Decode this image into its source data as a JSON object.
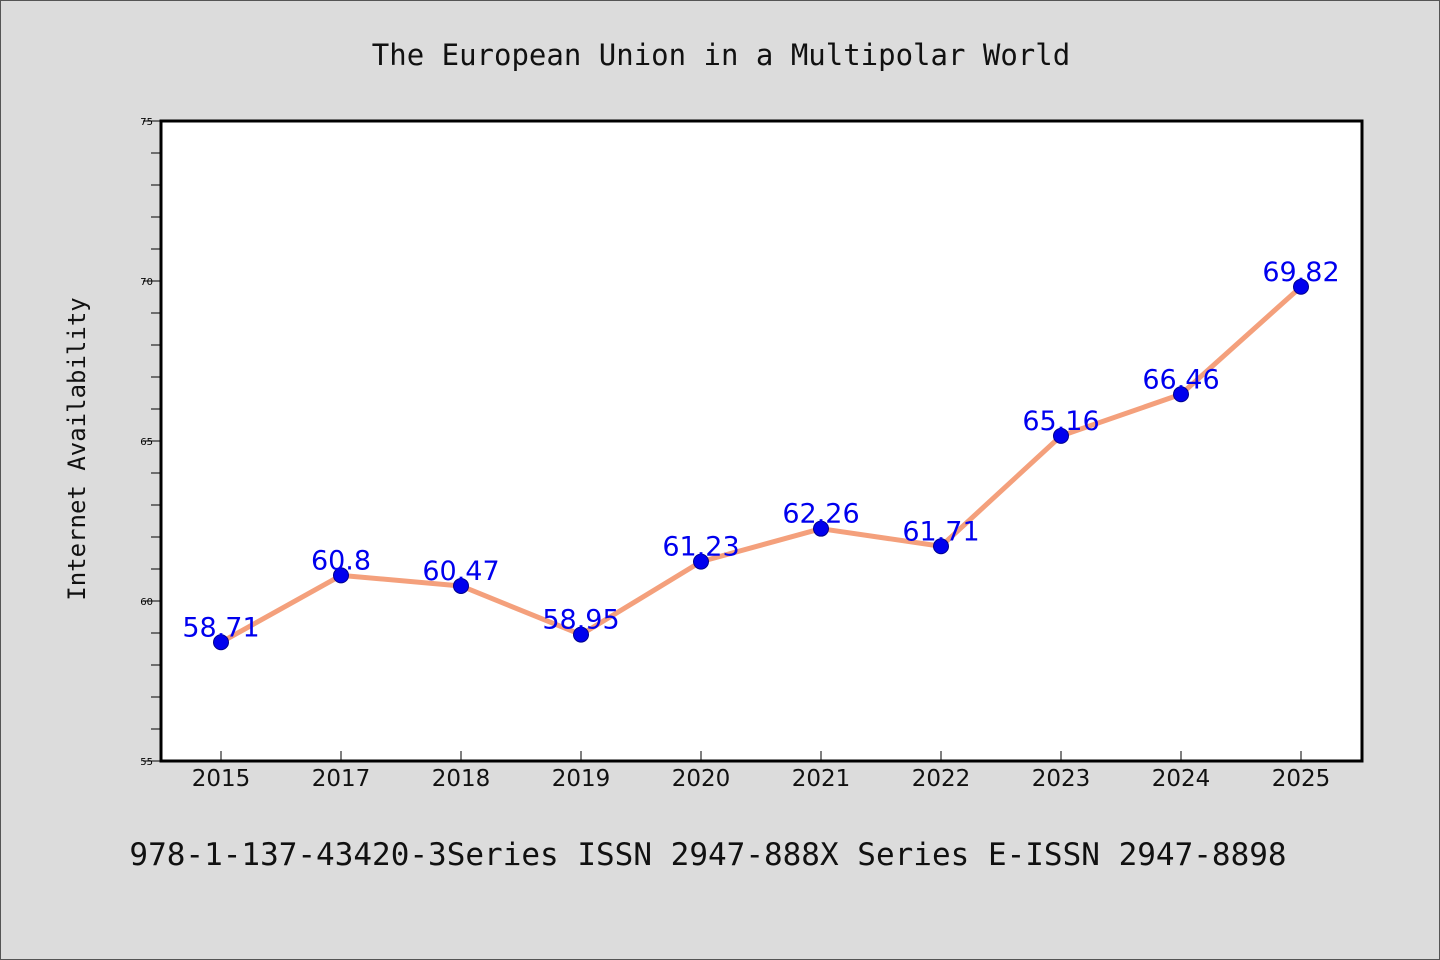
{
  "chart_data": {
    "type": "line",
    "title": "The European Union in a Multipolar World",
    "ylabel": "Internet Availability",
    "xlabel": "",
    "categories": [
      "2015",
      "2017",
      "2018",
      "2019",
      "2020",
      "2021",
      "2022",
      "2023",
      "2024",
      "2025"
    ],
    "values": [
      58.71,
      60.8,
      60.47,
      58.95,
      61.23,
      62.26,
      61.71,
      65.16,
      66.46,
      69.82
    ],
    "data_labels": [
      "58.71",
      "60.8",
      "60.47",
      "58.95",
      "61.23",
      "62.26",
      "61.71",
      "65.16",
      "66.46",
      "69.82"
    ],
    "ylim": [
      55,
      75
    ],
    "yticks": [
      55,
      60,
      65,
      70,
      75
    ],
    "ytick_labels": [
      "55",
      "60",
      "65",
      "70",
      "75"
    ],
    "grid": false,
    "legend": "none",
    "line_color": "#f4a07c",
    "marker_color": "#0000ee",
    "label_color": "#0000ee",
    "footer": "978-1-137-43420-3Series ISSN 2947-888X Series E-ISSN 2947-8898"
  }
}
